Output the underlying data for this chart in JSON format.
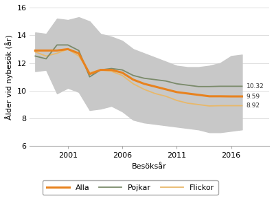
{
  "years": [
    1998,
    1999,
    2000,
    2001,
    2002,
    2003,
    2004,
    2005,
    2006,
    2007,
    2008,
    2009,
    2010,
    2011,
    2012,
    2013,
    2014,
    2015,
    2016,
    2017
  ],
  "alla": [
    12.9,
    12.9,
    12.9,
    13.0,
    12.7,
    11.2,
    11.5,
    11.5,
    11.3,
    10.8,
    10.5,
    10.3,
    10.1,
    9.9,
    9.8,
    9.7,
    9.6,
    9.6,
    9.59,
    9.59
  ],
  "pojkar": [
    12.5,
    12.3,
    13.3,
    13.3,
    12.9,
    11.0,
    11.5,
    11.6,
    11.5,
    11.1,
    10.9,
    10.8,
    10.7,
    10.5,
    10.4,
    10.3,
    10.3,
    10.32,
    10.32,
    10.32
  ],
  "flickor": [
    12.8,
    12.5,
    12.7,
    13.0,
    12.5,
    11.3,
    11.5,
    11.4,
    11.1,
    10.5,
    10.1,
    9.8,
    9.6,
    9.3,
    9.1,
    9.0,
    8.9,
    8.92,
    8.92,
    8.92
  ],
  "upper": [
    14.2,
    14.1,
    15.2,
    15.1,
    15.3,
    15.0,
    14.1,
    13.9,
    13.6,
    13.0,
    12.7,
    12.4,
    12.1,
    11.8,
    11.7,
    11.7,
    11.8,
    12.0,
    12.5,
    12.6
  ],
  "lower": [
    11.4,
    11.5,
    9.8,
    10.2,
    9.9,
    8.6,
    8.7,
    8.9,
    8.5,
    7.9,
    7.7,
    7.6,
    7.5,
    7.4,
    7.3,
    7.2,
    7.0,
    7.0,
    7.1,
    7.2
  ],
  "color_alla": "#e8821e",
  "color_pojkar": "#7a8a6a",
  "color_flickor": "#e8b86a",
  "color_band": "#c8c8c8",
  "ylabel": "Ålder vid nybesök (år)",
  "xlabel": "Besöksår",
  "ylim": [
    6,
    16
  ],
  "yticks": [
    6,
    8,
    10,
    12,
    14,
    16
  ],
  "xticks": [
    2001,
    2006,
    2011,
    2016
  ],
  "label_alla": "Alla",
  "label_pojkar": "Pojkar",
  "label_flickor": "Flickor",
  "end_label_pojkar": "10.32",
  "end_label_alla": "9.59",
  "end_label_flickor": "8.92",
  "bg_color": "#ffffff"
}
